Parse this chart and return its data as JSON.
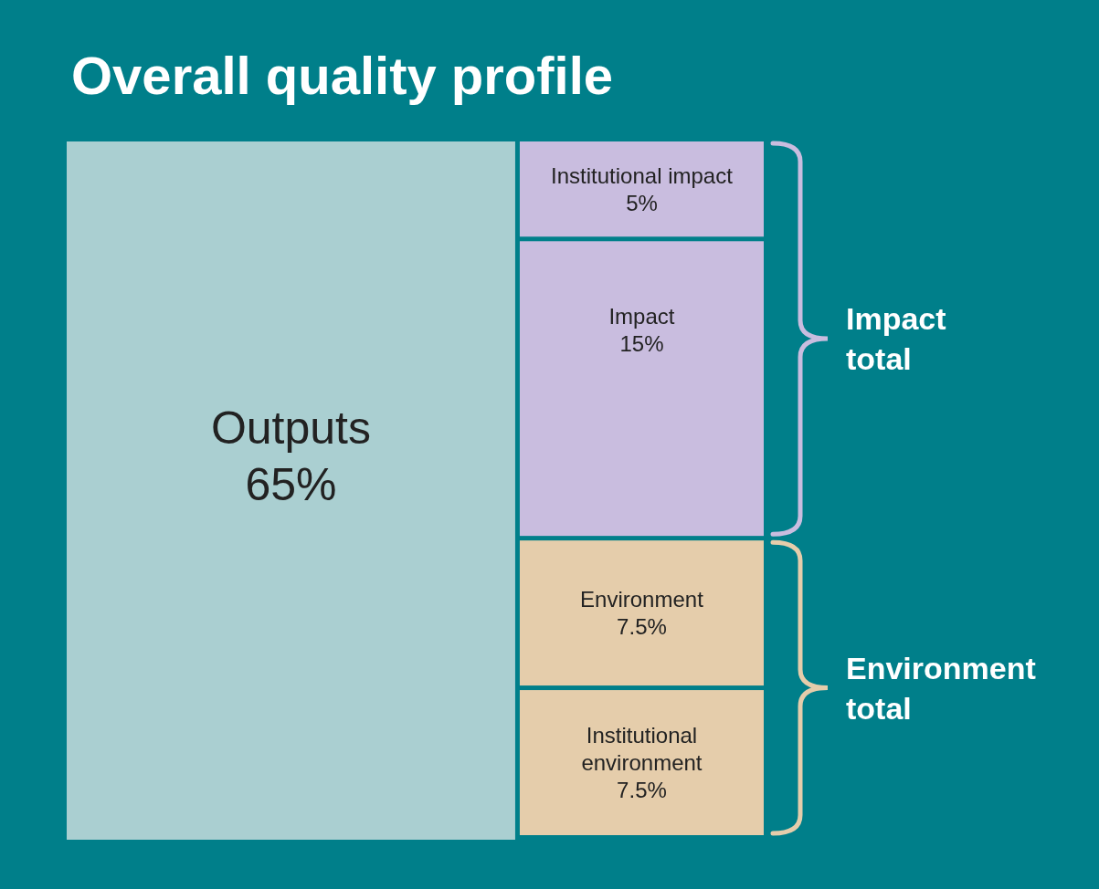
{
  "chart_data": {
    "type": "other",
    "title": "Overall quality profile",
    "categories": [
      "Outputs",
      "Institutional impact",
      "Impact",
      "Environment",
      "Institutional environment"
    ],
    "values": [
      65,
      5,
      15,
      7.5,
      7.5
    ],
    "value_labels": [
      "65%",
      "5%",
      "15%",
      "7.5%",
      "7.5%"
    ],
    "colors": [
      "#aacfd1",
      "#c9bddf",
      "#c9bddf",
      "#e5cdab",
      "#e5cdab"
    ],
    "annotations": [
      "Impact total",
      "Environment total"
    ]
  }
}
